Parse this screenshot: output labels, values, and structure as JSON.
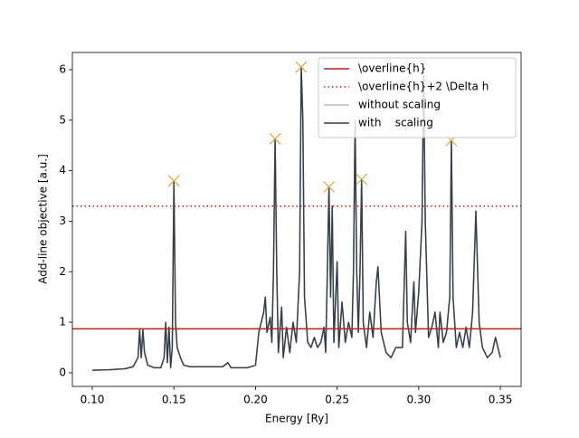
{
  "chart_data": {
    "type": "line",
    "xlabel": "Energy [Ry]",
    "ylabel": "Add-line objective [a.u.]",
    "xlim": [
      0.0878,
      0.3627
    ],
    "ylim": [
      -0.27,
      6.34
    ],
    "xticks": [
      {
        "value": 0.1,
        "label": "0.10"
      },
      {
        "value": 0.15,
        "label": "0.15"
      },
      {
        "value": 0.2,
        "label": "0.20"
      },
      {
        "value": 0.25,
        "label": "0.25"
      },
      {
        "value": 0.3,
        "label": "0.30"
      },
      {
        "value": 0.35,
        "label": "0.35"
      }
    ],
    "yticks": [
      0,
      1,
      2,
      3,
      4,
      5,
      6
    ],
    "legend": "upper right",
    "hlines": [
      {
        "name": "\\overline{h}",
        "value": 0.87,
        "color": "#b22222",
        "style": "solid"
      },
      {
        "name": "\\overline{h}+2 \\Delta h",
        "value": 3.3,
        "color": "#b22222",
        "style": "dotted"
      }
    ],
    "x": [
      0.1,
      0.11,
      0.12,
      0.125,
      0.128,
      0.129,
      0.13,
      0.131,
      0.132,
      0.134,
      0.138,
      0.142,
      0.144,
      0.145,
      0.146,
      0.147,
      0.148,
      0.149,
      0.15,
      0.151,
      0.152,
      0.154,
      0.156,
      0.16,
      0.17,
      0.18,
      0.183,
      0.185,
      0.195,
      0.2,
      0.202,
      0.205,
      0.206,
      0.207,
      0.209,
      0.21,
      0.211,
      0.212,
      0.213,
      0.214,
      0.216,
      0.217,
      0.219,
      0.221,
      0.223,
      0.225,
      0.227,
      0.228,
      0.229,
      0.23,
      0.232,
      0.234,
      0.236,
      0.238,
      0.24,
      0.242,
      0.243,
      0.244,
      0.245,
      0.246,
      0.247,
      0.248,
      0.25,
      0.251,
      0.253,
      0.255,
      0.257,
      0.259,
      0.26,
      0.261,
      0.262,
      0.263,
      0.264,
      0.265,
      0.266,
      0.268,
      0.27,
      0.272,
      0.274,
      0.275,
      0.277,
      0.28,
      0.283,
      0.286,
      0.29,
      0.292,
      0.293,
      0.295,
      0.297,
      0.298,
      0.3,
      0.302,
      0.303,
      0.304,
      0.306,
      0.308,
      0.31,
      0.312,
      0.313,
      0.315,
      0.317,
      0.319,
      0.32,
      0.321,
      0.323,
      0.325,
      0.327,
      0.329,
      0.331,
      0.333,
      0.335,
      0.337,
      0.339,
      0.342,
      0.345,
      0.347,
      0.35
    ],
    "series": [
      {
        "name": "without scaling",
        "color": "#bbbbbb",
        "values": [
          0.05,
          0.06,
          0.08,
          0.12,
          0.3,
          0.85,
          0.3,
          0.85,
          0.4,
          0.15,
          0.1,
          0.1,
          0.3,
          1.0,
          0.2,
          0.9,
          0.1,
          0.5,
          3.8,
          1.0,
          0.5,
          0.3,
          0.15,
          0.12,
          0.12,
          0.12,
          0.2,
          0.1,
          0.1,
          0.15,
          0.8,
          1.2,
          1.5,
          0.8,
          1.1,
          0.6,
          2.0,
          4.63,
          2.0,
          0.4,
          1.3,
          0.3,
          0.9,
          0.4,
          1.0,
          0.6,
          2.0,
          6.05,
          5.0,
          1.5,
          0.6,
          0.5,
          0.7,
          0.5,
          0.6,
          0.9,
          0.4,
          2.0,
          3.68,
          1.5,
          3.3,
          0.6,
          2.2,
          0.5,
          1.4,
          0.6,
          1.0,
          0.7,
          2.0,
          5.0,
          2.0,
          0.8,
          2.0,
          3.83,
          1.0,
          0.5,
          1.2,
          0.7,
          1.8,
          2.1,
          0.8,
          0.4,
          0.3,
          0.5,
          0.5,
          2.8,
          1.0,
          0.6,
          1.8,
          0.8,
          1.6,
          3.0,
          5.9,
          3.0,
          0.7,
          0.9,
          1.2,
          0.5,
          1.2,
          0.6,
          0.8,
          1.5,
          4.6,
          1.5,
          0.5,
          0.8,
          0.5,
          0.9,
          0.5,
          1.2,
          3.2,
          1.0,
          0.5,
          0.3,
          0.4,
          0.7,
          0.3
        ]
      },
      {
        "name": "with    scaling",
        "color": "#333f4b",
        "values": [
          0.05,
          0.06,
          0.08,
          0.12,
          0.3,
          0.85,
          0.3,
          0.85,
          0.4,
          0.15,
          0.1,
          0.1,
          0.3,
          1.0,
          0.2,
          0.9,
          0.1,
          0.5,
          3.8,
          1.0,
          0.5,
          0.3,
          0.15,
          0.12,
          0.12,
          0.12,
          0.2,
          0.1,
          0.1,
          0.15,
          0.8,
          1.2,
          1.5,
          0.8,
          1.1,
          0.6,
          2.0,
          4.63,
          2.0,
          0.4,
          1.3,
          0.3,
          0.9,
          0.4,
          1.0,
          0.6,
          2.0,
          6.05,
          5.0,
          1.5,
          0.6,
          0.5,
          0.7,
          0.5,
          0.6,
          0.9,
          0.4,
          2.0,
          3.68,
          1.5,
          3.3,
          0.6,
          2.2,
          0.5,
          1.4,
          0.6,
          1.0,
          0.7,
          2.0,
          5.0,
          2.0,
          0.8,
          2.0,
          3.83,
          1.0,
          0.5,
          1.2,
          0.7,
          1.8,
          2.1,
          0.8,
          0.4,
          0.3,
          0.5,
          0.5,
          2.8,
          1.0,
          0.6,
          1.8,
          0.8,
          1.6,
          3.0,
          5.9,
          3.0,
          0.7,
          0.9,
          1.2,
          0.5,
          1.2,
          0.6,
          0.8,
          1.5,
          4.6,
          1.5,
          0.5,
          0.8,
          0.5,
          0.9,
          0.5,
          1.2,
          3.2,
          1.0,
          0.5,
          0.3,
          0.4,
          0.7,
          0.3
        ]
      }
    ],
    "markers": {
      "color": "#d4a83a",
      "x": [
        0.15,
        0.212,
        0.228,
        0.245,
        0.265,
        0.32
      ],
      "values": [
        3.8,
        4.63,
        6.05,
        3.68,
        3.83,
        4.6
      ]
    }
  }
}
